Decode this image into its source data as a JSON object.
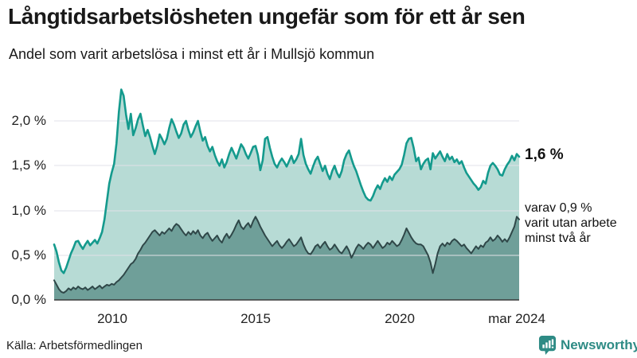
{
  "header": {
    "title": "Långtidsarbetslösheten ungefär som för ett år sen",
    "subtitle": "Andel som varit arbetslösa i minst ett år i Mullsjö kommun"
  },
  "chart_data": {
    "type": "area",
    "title": "Långtidsarbetslösheten ungefär som för ett år sen",
    "subtitle": "Andel som varit arbetslösa i minst ett år i Mullsjö kommun",
    "frequency": "monthly",
    "x_start": "2008-01",
    "x_end": "2024-03",
    "ylim": [
      0,
      2.4
    ],
    "grid": "horizontal",
    "y_ticks_top_down": [
      "2,0 %",
      "1,5 %",
      "1,0 %",
      "0,5 %",
      "0,0 %"
    ],
    "x_ticks": [
      {
        "label": "2010",
        "month_index": 24
      },
      {
        "label": "2015",
        "month_index": 84
      },
      {
        "label": "2020",
        "month_index": 144
      },
      {
        "label": "mar 2024",
        "month_index": 194
      }
    ],
    "series": [
      {
        "name": "Andel arbetslösa minst ett år",
        "color": "#149a8d",
        "fill": "#b7dbd5",
        "latest_value_label": "1,6 %",
        "values": [
          0.62,
          0.54,
          0.42,
          0.33,
          0.3,
          0.36,
          0.44,
          0.52,
          0.58,
          0.65,
          0.66,
          0.61,
          0.57,
          0.62,
          0.66,
          0.61,
          0.64,
          0.67,
          0.63,
          0.69,
          0.76,
          0.9,
          1.1,
          1.3,
          1.42,
          1.52,
          1.75,
          2.1,
          2.35,
          2.28,
          2.07,
          1.91,
          2.08,
          1.84,
          1.92,
          2.02,
          2.08,
          1.95,
          1.83,
          1.9,
          1.82,
          1.72,
          1.63,
          1.72,
          1.85,
          1.8,
          1.74,
          1.8,
          1.92,
          2.02,
          1.96,
          1.88,
          1.81,
          1.86,
          1.96,
          2.0,
          1.9,
          1.82,
          1.87,
          1.94,
          2.0,
          1.88,
          1.78,
          1.82,
          1.72,
          1.66,
          1.71,
          1.62,
          1.55,
          1.5,
          1.57,
          1.48,
          1.54,
          1.63,
          1.7,
          1.64,
          1.58,
          1.66,
          1.74,
          1.7,
          1.63,
          1.58,
          1.64,
          1.71,
          1.72,
          1.62,
          1.45,
          1.56,
          1.8,
          1.82,
          1.7,
          1.6,
          1.52,
          1.48,
          1.54,
          1.58,
          1.54,
          1.49,
          1.55,
          1.61,
          1.53,
          1.57,
          1.63,
          1.8,
          1.62,
          1.52,
          1.46,
          1.41,
          1.49,
          1.56,
          1.6,
          1.52,
          1.44,
          1.5,
          1.41,
          1.35,
          1.44,
          1.5,
          1.42,
          1.37,
          1.44,
          1.56,
          1.63,
          1.67,
          1.58,
          1.5,
          1.44,
          1.36,
          1.28,
          1.21,
          1.15,
          1.12,
          1.11,
          1.16,
          1.23,
          1.28,
          1.24,
          1.31,
          1.36,
          1.32,
          1.38,
          1.34,
          1.4,
          1.43,
          1.46,
          1.51,
          1.62,
          1.75,
          1.8,
          1.81,
          1.7,
          1.55,
          1.59,
          1.46,
          1.52,
          1.56,
          1.58,
          1.46,
          1.64,
          1.58,
          1.62,
          1.66,
          1.6,
          1.55,
          1.63,
          1.57,
          1.6,
          1.54,
          1.57,
          1.52,
          1.55,
          1.48,
          1.42,
          1.38,
          1.34,
          1.3,
          1.27,
          1.23,
          1.26,
          1.33,
          1.3,
          1.42,
          1.5,
          1.53,
          1.5,
          1.46,
          1.4,
          1.39,
          1.46,
          1.51,
          1.55,
          1.61,
          1.56,
          1.63,
          1.6
        ]
      },
      {
        "name": "varav utan arbete minst två år",
        "color": "#2f4748",
        "fill": "#6f9f99",
        "latest_value_label": "0,9 %",
        "values": [
          0.22,
          0.17,
          0.12,
          0.09,
          0.08,
          0.1,
          0.13,
          0.11,
          0.14,
          0.12,
          0.15,
          0.13,
          0.12,
          0.14,
          0.11,
          0.13,
          0.15,
          0.12,
          0.14,
          0.16,
          0.13,
          0.15,
          0.17,
          0.16,
          0.18,
          0.17,
          0.2,
          0.22,
          0.25,
          0.28,
          0.32,
          0.36,
          0.4,
          0.42,
          0.46,
          0.52,
          0.56,
          0.61,
          0.64,
          0.68,
          0.72,
          0.76,
          0.78,
          0.75,
          0.72,
          0.76,
          0.74,
          0.77,
          0.8,
          0.77,
          0.82,
          0.85,
          0.83,
          0.79,
          0.75,
          0.72,
          0.76,
          0.73,
          0.77,
          0.74,
          0.78,
          0.72,
          0.69,
          0.73,
          0.75,
          0.7,
          0.66,
          0.69,
          0.72,
          0.67,
          0.64,
          0.7,
          0.74,
          0.69,
          0.73,
          0.78,
          0.84,
          0.89,
          0.82,
          0.79,
          0.83,
          0.86,
          0.81,
          0.88,
          0.93,
          0.88,
          0.82,
          0.77,
          0.72,
          0.68,
          0.64,
          0.6,
          0.63,
          0.66,
          0.61,
          0.58,
          0.61,
          0.65,
          0.68,
          0.64,
          0.6,
          0.62,
          0.66,
          0.7,
          0.62,
          0.56,
          0.52,
          0.51,
          0.55,
          0.6,
          0.62,
          0.58,
          0.62,
          0.65,
          0.6,
          0.56,
          0.58,
          0.62,
          0.58,
          0.54,
          0.52,
          0.56,
          0.6,
          0.55,
          0.47,
          0.52,
          0.58,
          0.62,
          0.6,
          0.57,
          0.61,
          0.64,
          0.62,
          0.58,
          0.62,
          0.66,
          0.62,
          0.58,
          0.6,
          0.64,
          0.62,
          0.66,
          0.63,
          0.6,
          0.62,
          0.67,
          0.73,
          0.8,
          0.75,
          0.7,
          0.66,
          0.63,
          0.62,
          0.62,
          0.6,
          0.55,
          0.5,
          0.42,
          0.3,
          0.4,
          0.52,
          0.6,
          0.63,
          0.6,
          0.64,
          0.62,
          0.66,
          0.68,
          0.66,
          0.63,
          0.6,
          0.62,
          0.58,
          0.55,
          0.52,
          0.56,
          0.6,
          0.57,
          0.61,
          0.59,
          0.64,
          0.66,
          0.7,
          0.66,
          0.68,
          0.72,
          0.69,
          0.65,
          0.68,
          0.65,
          0.7,
          0.76,
          0.82,
          0.93,
          0.9
        ]
      }
    ]
  },
  "annotations": {
    "latest_total": "1,6 %",
    "secondary_lines": [
      "varav 0,9 %",
      "varit utan arbete",
      "minst två år"
    ]
  },
  "footer": {
    "source": "Källa: Arbetsförmedlingen",
    "brand": "Newsworthy"
  },
  "colors": {
    "line_total": "#149a8d",
    "fill_total": "#b7dbd5",
    "line_two_years": "#2f4748",
    "fill_two_years": "#6f9f99",
    "gridline": "#e0e1e8",
    "baseline": "#3a3a3a",
    "brand_teal": "#2e8b85"
  }
}
